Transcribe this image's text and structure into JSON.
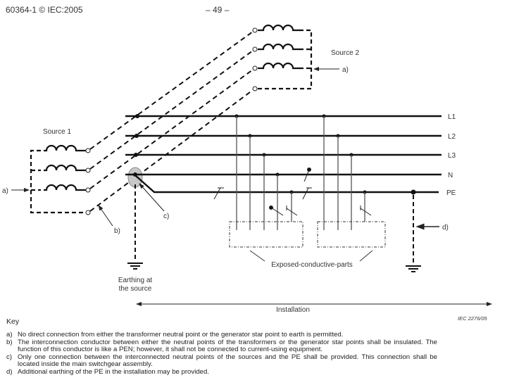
{
  "header": {
    "left": "60364-1 © IEC:2005",
    "center": "– 49 –"
  },
  "diagram": {
    "source1": "Source 1",
    "source2": "Source 2",
    "buses": [
      "L1",
      "L2",
      "L3",
      "N",
      "PE"
    ],
    "callouts": {
      "a": "a)",
      "b": "b)",
      "c": "c)",
      "d": "d)"
    },
    "earthing_line1": "Earthing at",
    "earthing_line2": "the source",
    "exposed": "Exposed-conductive-parts",
    "installation": "Installation",
    "figure_ref": "IEC  2276/05",
    "neutral_point_color": "#c8c8c8"
  },
  "key": {
    "title": "Key",
    "items": [
      {
        "label": "a)",
        "text": "No direct connection from either the transformer neutral point or the generator star point to earth is permitted."
      },
      {
        "label": "b)",
        "text": "The interconnection conductor between either the neutral points of the transformers or the generator star points shall be insulated. The function of this conductor is like a PEN; however, it shall not be connected to current-using equipment."
      },
      {
        "label": "c)",
        "text": "Only one connection between the interconnected neutral points of the sources and the PE shall be provided. This connection shall be located inside the main switchgear assembly."
      },
      {
        "label": "d)",
        "text": "Additional earthing of the PE in the installation may be provided."
      }
    ]
  }
}
